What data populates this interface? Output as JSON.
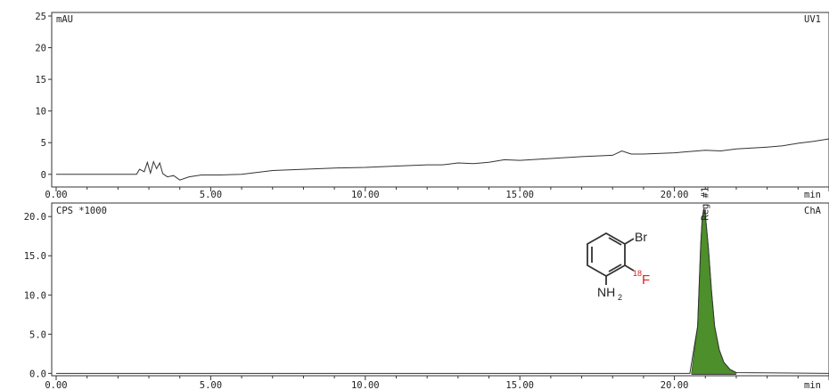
{
  "chart_data": [
    {
      "type": "line",
      "channel_label": "UV1",
      "ylabel": "mAU",
      "xlabel": "min",
      "xlim": [
        0,
        25
      ],
      "ylim": [
        -2,
        25
      ],
      "x_ticks": [
        "0.00",
        "5.00",
        "10.00",
        "15.00",
        "20.00"
      ],
      "y_ticks": [
        "25",
        "20",
        "15",
        "10",
        "5",
        "0"
      ],
      "y_tick_values": [
        25,
        20,
        15,
        10,
        5,
        0
      ],
      "grid": false,
      "series": [
        {
          "x": [
            0,
            2.6,
            2.7,
            2.85,
            2.95,
            3.05,
            3.15,
            3.25,
            3.35,
            3.45,
            3.6,
            3.8,
            4.0,
            4.3,
            4.7,
            5.3,
            6.0,
            7.0,
            8.0,
            9.0,
            10.0,
            11.0,
            12.0,
            12.5,
            13.0,
            13.5,
            14.0,
            14.5,
            15.0,
            16.0,
            17.0,
            18.0,
            18.3,
            18.6,
            19.0,
            20.0,
            21.0,
            21.5,
            22.0,
            23.0,
            23.5,
            24.0,
            24.5,
            25.0
          ],
          "values": [
            0,
            0,
            0.8,
            0.4,
            1.9,
            0.2,
            2.0,
            0.9,
            1.8,
            0.1,
            -0.4,
            -0.2,
            -0.9,
            -0.4,
            -0.1,
            -0.1,
            0,
            0.6,
            0.8,
            1.0,
            1.1,
            1.3,
            1.5,
            1.5,
            1.8,
            1.7,
            1.9,
            2.3,
            2.2,
            2.5,
            2.8,
            3.0,
            3.7,
            3.2,
            3.2,
            3.4,
            3.8,
            3.7,
            4.0,
            4.3,
            4.5,
            4.9,
            5.2,
            5.6
          ]
        }
      ]
    },
    {
      "type": "area",
      "channel_label": "ChA",
      "ylabel": "CPS *1000",
      "xlabel": "min",
      "xlim": [
        0,
        25
      ],
      "ylim": [
        -0.3,
        21.5
      ],
      "x_ticks": [
        "0.00",
        "5.00",
        "10.00",
        "15.00",
        "20.00"
      ],
      "y_ticks": [
        "20.0",
        "15.0",
        "10.0",
        "5.0",
        "0.0"
      ],
      "y_tick_values": [
        20,
        15,
        10,
        5,
        0
      ],
      "grid": false,
      "series": [
        {
          "x": [
            0,
            20.5,
            20.75,
            20.85,
            20.9,
            20.95,
            21.0,
            21.1,
            21.2,
            21.3,
            21.45,
            21.6,
            21.8,
            22.0,
            25.0
          ],
          "values": [
            0,
            0,
            6.0,
            16.5,
            19.8,
            21.0,
            20.2,
            16.0,
            10.5,
            6.0,
            3.0,
            1.4,
            0.5,
            0.1,
            0
          ]
        }
      ],
      "peak_annotation": {
        "label": "Reg #1"
      },
      "peak_color": "#4d8f2a"
    }
  ],
  "structure": {
    "atoms": {
      "br": "Br",
      "f_mass": "18",
      "f": "F",
      "nh": "NH",
      "nh_sub": "2"
    },
    "f_color": "#e02020"
  }
}
